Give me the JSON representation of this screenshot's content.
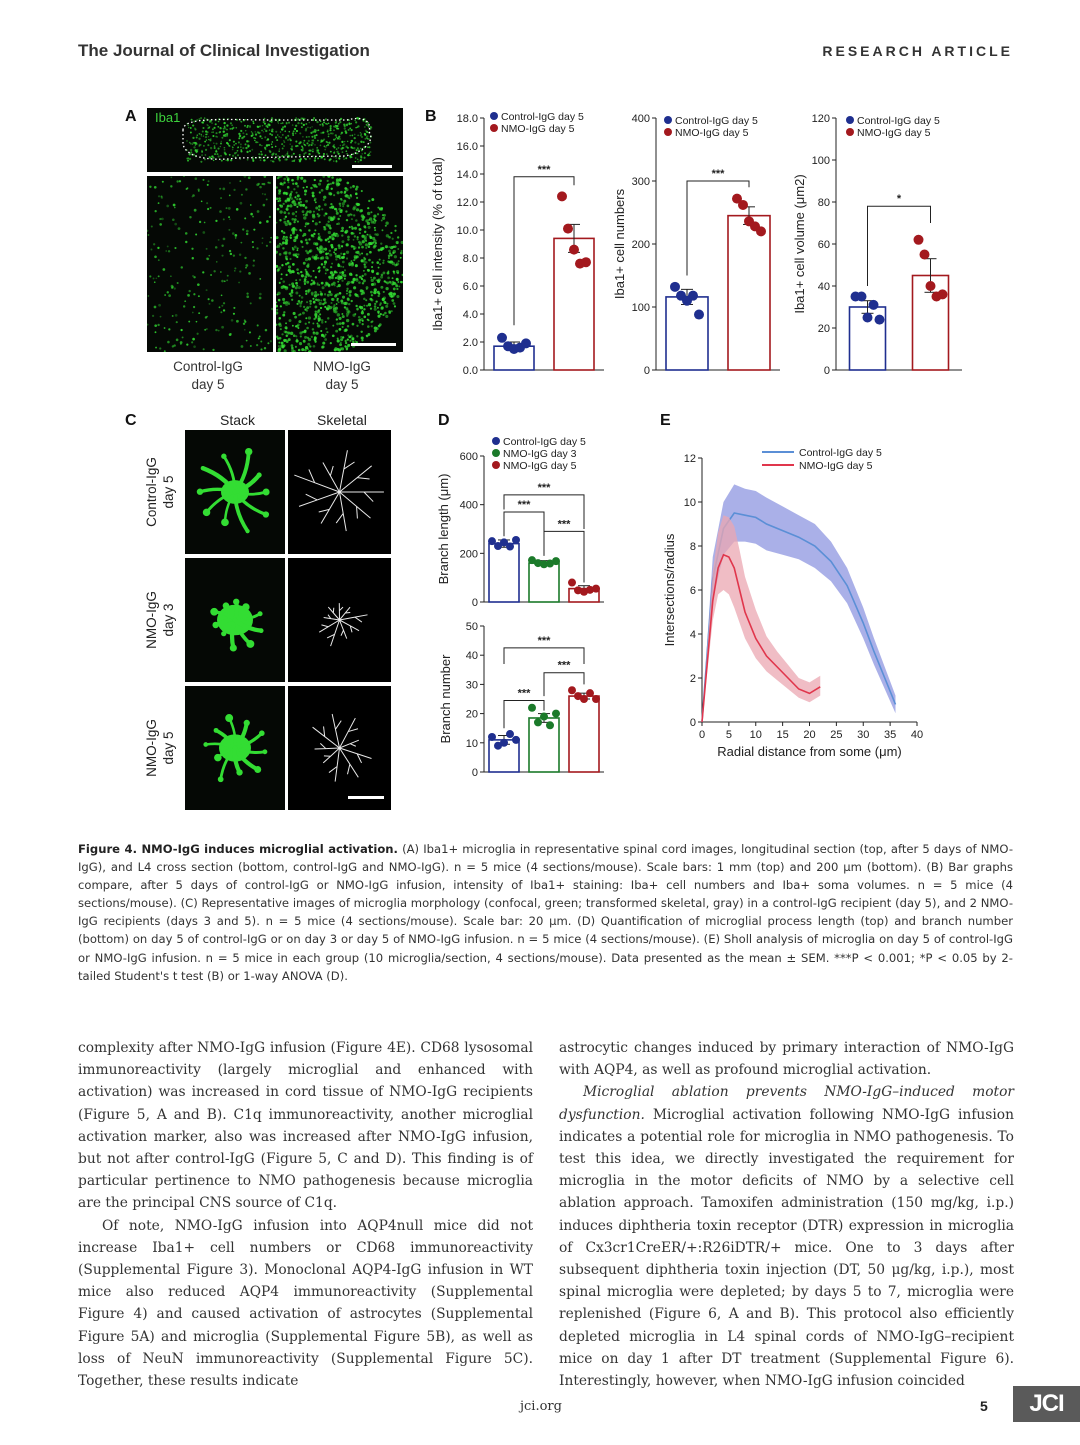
{
  "header": {
    "journal": "The Journal of Clinical Investigation",
    "article_type": "RESEARCH ARTICLE"
  },
  "panel_labels": {
    "a": "A",
    "b": "B",
    "c": "C",
    "d": "D",
    "e": "E"
  },
  "panel_a": {
    "channel": "Iba1",
    "captions": [
      "Control-IgG day 5",
      "NMO-IgG day 5"
    ],
    "caption_lines": [
      [
        "Control-IgG",
        "day 5"
      ],
      [
        "NMO-IgG",
        "day 5"
      ]
    ]
  },
  "panel_c": {
    "col_headers": [
      "Stack",
      "Skeletal"
    ],
    "row_labels": [
      [
        "Control-IgG",
        "day 5"
      ],
      [
        "NMO-IgG",
        "day 3"
      ],
      [
        "NMO-IgG",
        "day 5"
      ]
    ]
  },
  "colors": {
    "control": "#1f2f8f",
    "nmo_d3": "#1b7a2a",
    "nmo_d5": "#a3191e",
    "shade_blue": "#8e96e0",
    "shade_red": "#eba7b2",
    "line_blue": "#5b8fd6",
    "line_red": "#e0364c",
    "micro_green": "#33dd33"
  },
  "chart_data": [
    {
      "type": "bar",
      "id": "B1",
      "categories": [
        "Control-IgG day 5",
        "NMO-IgG day 5"
      ],
      "legend": [
        "Control-IgG day 5",
        "NMO-IgG day 5"
      ],
      "ylabel": "Iba1+ cell intensity (% of total)",
      "ylim": [
        0,
        18
      ],
      "yticks": [
        "0.0",
        "2.0",
        "4.0",
        "6.0",
        "8.0",
        "10.0",
        "12.0",
        "14.0",
        "16.0",
        "18.0"
      ],
      "values": [
        1.7,
        9.4
      ],
      "errors": [
        0.3,
        1.0
      ],
      "points": [
        [
          2.3,
          1.7,
          1.5,
          1.6,
          1.9
        ],
        [
          12.4,
          10.1,
          8.6,
          7.6,
          7.7
        ]
      ],
      "significance": "***"
    },
    {
      "type": "bar",
      "id": "B2",
      "categories": [
        "Control-IgG day 5",
        "NMO-IgG day 5"
      ],
      "legend": [
        "Control-IgG day 5",
        "NMO-IgG day 5"
      ],
      "ylabel": "Iba1+ cell numbers",
      "ylim": [
        0,
        400
      ],
      "yticks": [
        "0",
        "100",
        "200",
        "300",
        "400"
      ],
      "values": [
        116,
        245
      ],
      "errors": [
        12,
        14
      ],
      "points": [
        [
          132,
          118,
          110,
          118,
          88
        ],
        [
          272,
          262,
          236,
          228,
          220
        ]
      ],
      "significance": "***"
    },
    {
      "type": "bar",
      "id": "B3",
      "categories": [
        "Control-IgG day 5",
        "NMO-IgG day 5"
      ],
      "legend": [
        "Control-IgG day 5",
        "NMO-IgG day 5"
      ],
      "ylabel": "Iba1+ cell volume (μm2)",
      "ylim": [
        0,
        120
      ],
      "yticks": [
        "0",
        "20",
        "40",
        "60",
        "80",
        "100",
        "120"
      ],
      "values": [
        30,
        45
      ],
      "errors": [
        3,
        8
      ],
      "points": [
        [
          35,
          35,
          25,
          31,
          24
        ],
        [
          62,
          55,
          40,
          35,
          36
        ]
      ],
      "significance": "*"
    },
    {
      "type": "bar",
      "id": "D1",
      "categories": [
        "Control-IgG day 5",
        "NMO-IgG day 3",
        "NMO-IgG day 5"
      ],
      "legend": [
        "Control-IgG day 5",
        "NMO-IgG day 3",
        "NMO-IgG day 5"
      ],
      "ylabel": "Branch length (μm)",
      "ylim": [
        0,
        600
      ],
      "yticks": [
        "0",
        "200",
        "400",
        "600"
      ],
      "values": [
        240,
        160,
        55
      ],
      "errors": [
        15,
        10,
        12
      ],
      "points": [
        [
          250,
          230,
          245,
          228,
          255
        ],
        [
          172,
          160,
          155,
          158,
          168
        ],
        [
          80,
          48,
          42,
          50,
          55
        ]
      ],
      "significance": [
        "***",
        "***",
        "***"
      ]
    },
    {
      "type": "bar",
      "id": "D2",
      "categories": [
        "Control-IgG day 5",
        "NMO-IgG day 3",
        "NMO-IgG day 5"
      ],
      "ylabel": "Branch number",
      "ylim": [
        0,
        50
      ],
      "yticks": [
        "0",
        "10",
        "20",
        "30",
        "40",
        "50"
      ],
      "values": [
        11,
        18.5,
        26
      ],
      "errors": [
        1.5,
        1.5,
        1.0
      ],
      "points": [
        [
          12,
          9,
          10,
          13,
          11
        ],
        [
          22,
          17,
          19,
          16,
          20
        ],
        [
          28,
          26,
          25,
          27,
          25
        ]
      ],
      "significance": [
        "***",
        "***",
        "***"
      ]
    },
    {
      "type": "line",
      "id": "E",
      "legend": [
        "Control-IgG day 5",
        "NMO-IgG day 5"
      ],
      "xlabel": "Radial distance from some (μm)",
      "ylabel": "Intersections/radius",
      "xlim": [
        0,
        40
      ],
      "ylim": [
        0,
        12
      ],
      "xticks": [
        "0",
        "5",
        "10",
        "15",
        "20",
        "25",
        "30",
        "35",
        "40"
      ],
      "yticks": [
        "0",
        "2",
        "4",
        "6",
        "8",
        "10",
        "12"
      ],
      "series": [
        {
          "name": "Control-IgG day 5",
          "x": [
            0,
            2,
            4,
            6,
            8,
            10,
            12,
            15,
            18,
            21,
            24,
            27,
            30,
            32,
            34,
            36
          ],
          "y": [
            0,
            6.5,
            8.8,
            9.5,
            9.4,
            9.3,
            9.0,
            8.7,
            8.4,
            8.0,
            7.3,
            6.2,
            4.5,
            3.2,
            2.0,
            0.8
          ],
          "low": [
            0,
            5.5,
            7.6,
            8.2,
            8.2,
            8.1,
            7.8,
            7.6,
            7.4,
            7.0,
            6.4,
            5.4,
            3.8,
            2.6,
            1.5,
            0.4
          ],
          "high": [
            0,
            7.5,
            10.0,
            10.8,
            10.6,
            10.5,
            10.2,
            9.8,
            9.4,
            9.0,
            8.2,
            7.0,
            5.2,
            3.8,
            2.5,
            1.2
          ]
        },
        {
          "name": "NMO-IgG day 5",
          "x": [
            0,
            2,
            3,
            4,
            5,
            6,
            7,
            8,
            10,
            12,
            14,
            16,
            18,
            20,
            22
          ],
          "y": [
            0,
            5.5,
            7.0,
            7.6,
            7.5,
            7.0,
            6.0,
            5.0,
            3.8,
            3.0,
            2.5,
            2.0,
            1.5,
            1.3,
            1.6
          ],
          "low": [
            0,
            4.6,
            5.8,
            6.0,
            5.8,
            5.2,
            4.5,
            3.8,
            2.9,
            2.3,
            1.9,
            1.5,
            1.1,
            0.9,
            1.2
          ],
          "high": [
            0,
            6.8,
            8.6,
            9.4,
            9.3,
            8.9,
            7.8,
            6.6,
            5.1,
            3.9,
            3.2,
            2.6,
            2.0,
            1.8,
            2.1
          ]
        }
      ]
    }
  ],
  "caption": {
    "title": "Figure 4. NMO-IgG induces microglial activation.",
    "text": "(A) Iba1+ microglia in representative spinal cord images, longitudinal section (top, after 5 days of NMO-IgG), and L4 cross section (bottom, control-IgG and NMO-IgG). n = 5 mice (4 sections/mouse). Scale bars: 1 mm (top) and 200 μm (bottom). (B) Bar graphs compare, after 5 days of control-IgG or NMO-IgG infusion, intensity of Iba1+ staining: Iba+ cell numbers and Iba+ soma volumes. n = 5 mice (4 sections/mouse). (C) Representative images of microglia morphology (confocal, green; transformed skeletal, gray) in a control-IgG recipient (day 5), and 2 NMO-IgG recipients (days 3 and 5). n = 5 mice (4 sections/mouse). Scale bar: 20 μm. (D) Quantification of microglial process length (top) and branch number (bottom) on day 5 of control-IgG or on day 3 or day 5 of NMO-IgG infusion. n = 5 mice (4 sections/mouse). (E) Sholl analysis of microglia on day 5 of control-IgG or NMO-IgG infusion. n = 5 mice in each group (10 microglia/section, 4 sections/mouse). Data presented as the mean ± SEM. ***P < 0.001; *P < 0.05 by 2-tailed Student's t test (B) or 1-way ANOVA (D)."
  },
  "body": {
    "left_p1": "complexity after NMO-IgG infusion (Figure 4E). CD68 lysosomal immunoreactivity (largely microglial and enhanced with activation) was increased in cord tissue of NMO-IgG recipients (Figure 5, A and B). C1q immunoreactivity, another microglial activation marker, also was increased after NMO-IgG infusion, but not after control-IgG (Figure 5, C and D). This finding is of particular pertinence to NMO pathogenesis because microglia are the principal CNS source of C1q.",
    "left_p2": "Of note, NMO-IgG infusion into AQP4null mice did not increase Iba1+ cell numbers or CD68 immunoreactivity (Supplemental Figure 3). Monoclonal AQP4-IgG infusion in WT mice also reduced AQP4 immunoreactivity (Supplemental Figure 4) and caused activation of astrocytes (Supplemental Figure 5A) and microglia (Supplemental Figure 5B), as well as loss of NeuN immunoreactivity (Supplemental Figure 5C). Together, these results indicate",
    "right_p1": "astrocytic changes induced by primary interaction of NMO-IgG with AQP4, as well as profound microglial activation.",
    "right_p2_heading": "Microglial ablation prevents NMO-IgG–induced motor dysfunction.",
    "right_p2": "Microglial activation following NMO-IgG infusion indicates a potential role for microglia in NMO pathogenesis. To test this idea, we directly investigated the requirement for microglia in the motor deficits of NMO by a selective cell ablation approach. Tamoxifen administration (150 mg/kg, i.p.) induces diphtheria toxin receptor (DTR) expression in microglia of Cx3cr1CreER/+:R26iDTR/+ mice. One to 3 days after subsequent diphtheria toxin injection (DT, 50 μg/kg, i.p.), most spinal microglia were depleted; by days 5 to 7, microglia were replenished (Figure 6, A and B). This protocol also efficiently depleted microglia in L4 spinal cords of NMO-IgG–recipient mice on day 1 after DT treatment (Supplemental Figure 6). Interestingly, however, when NMO-IgG infusion coincided"
  },
  "footer": {
    "url": "jci.org",
    "page": "5",
    "logo": "JCI"
  }
}
